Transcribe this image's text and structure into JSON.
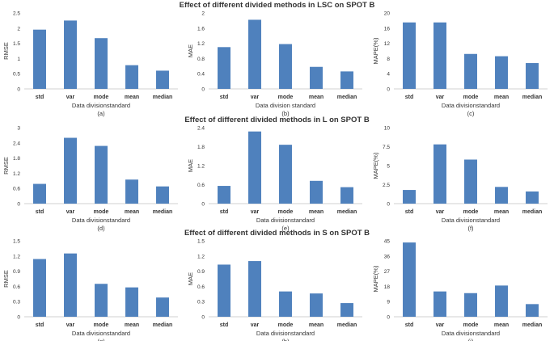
{
  "row_titles": [
    "Effect of different divided methods in LSC on SPOT B",
    "Effect of different divided methods in L on SPOT B",
    "Effect of different divided methods in S on SPOT B"
  ],
  "colors": {
    "bar": "#4f81bd",
    "axis": "#d0d0d0",
    "text": "#333333"
  },
  "chart_data": [
    {
      "id": "a",
      "type": "bar",
      "categories": [
        "std",
        "var",
        "mode",
        "mean",
        "median"
      ],
      "values": [
        1.95,
        2.25,
        1.67,
        0.78,
        0.6
      ],
      "ylabel": "RMSE",
      "xlabel": "Data divisionstandard",
      "caption": "(a)",
      "ylim": [
        0,
        2.5
      ],
      "ticks": [
        "0",
        "0.5",
        "1",
        "1.5",
        "2",
        "2.5"
      ]
    },
    {
      "id": "b",
      "type": "bar",
      "categories": [
        "std",
        "var",
        "mode",
        "mean",
        "median"
      ],
      "values": [
        1.1,
        1.82,
        1.18,
        0.58,
        0.46
      ],
      "ylabel": "MAE",
      "xlabel": "Data division standard",
      "caption": "(b)",
      "ylim": [
        0,
        2
      ],
      "ticks": [
        "0",
        "0.4",
        "0.8",
        "1.2",
        "1.6",
        "2"
      ]
    },
    {
      "id": "c",
      "type": "bar",
      "categories": [
        "std",
        "var",
        "mode",
        "mean",
        "median"
      ],
      "values": [
        17.5,
        17.5,
        9.2,
        8.6,
        6.8
      ],
      "ylabel": "MAPE(%)",
      "xlabel": "Data divisionstandard",
      "caption": "(c)",
      "ylim": [
        0,
        20
      ],
      "ticks": [
        "0",
        "4",
        "8",
        "12",
        "16",
        "20"
      ]
    },
    {
      "id": "d",
      "type": "bar",
      "categories": [
        "std",
        "var",
        "mode",
        "mean",
        "median"
      ],
      "values": [
        0.78,
        2.6,
        2.28,
        0.95,
        0.68
      ],
      "ylabel": "RMSE",
      "xlabel": "Data divisionstandard",
      "caption": "(d)",
      "ylim": [
        0,
        3
      ],
      "ticks": [
        "0",
        "0.6",
        "1.2",
        "1.8",
        "2.4",
        "3"
      ]
    },
    {
      "id": "e",
      "type": "bar",
      "categories": [
        "std",
        "var",
        "mode",
        "mean",
        "median"
      ],
      "values": [
        0.56,
        2.28,
        1.86,
        0.72,
        0.52
      ],
      "ylabel": "MAE",
      "xlabel": "Data divisionstandard",
      "caption": "(e)",
      "ylim": [
        0,
        2.4
      ],
      "ticks": [
        "0",
        "0.6",
        "1.2",
        "1.8",
        "2.4"
      ]
    },
    {
      "id": "f",
      "type": "bar",
      "categories": [
        "std",
        "var",
        "mode",
        "mean",
        "median"
      ],
      "values": [
        1.8,
        7.8,
        5.8,
        2.2,
        1.6
      ],
      "ylabel": "MAPE(%)",
      "xlabel": "Data divisionstandard",
      "caption": "(f)",
      "ylim": [
        0,
        10
      ],
      "ticks": [
        "0",
        "2.5",
        "5",
        "7.5",
        "10"
      ]
    },
    {
      "id": "g",
      "type": "bar",
      "categories": [
        "std",
        "var",
        "mode",
        "mean",
        "median"
      ],
      "values": [
        1.14,
        1.25,
        0.65,
        0.58,
        0.38
      ],
      "ylabel": "RMSE",
      "xlabel": "Data divisionstandard",
      "caption": "(g)",
      "ylim": [
        0,
        1.5
      ],
      "ticks": [
        "0",
        "0.3",
        "0.6",
        "0.9",
        "1.2",
        "1.5"
      ]
    },
    {
      "id": "h",
      "type": "bar",
      "categories": [
        "std",
        "var",
        "mode",
        "mean",
        "median"
      ],
      "values": [
        1.03,
        1.1,
        0.5,
        0.46,
        0.27
      ],
      "ylabel": "MAE",
      "xlabel": "Data divisionstandard",
      "caption": "(h)",
      "ylim": [
        0,
        1.5
      ],
      "ticks": [
        "0",
        "0.3",
        "0.6",
        "0.9",
        "1.2",
        "1.5"
      ]
    },
    {
      "id": "i",
      "type": "bar",
      "categories": [
        "std",
        "var",
        "mode",
        "mean",
        "median"
      ],
      "values": [
        44,
        15,
        14,
        18.5,
        7.5
      ],
      "ylabel": "MAPE(%)",
      "xlabel": "Data divisionstandard",
      "caption": "(i)",
      "ylim": [
        0,
        45
      ],
      "ticks": [
        "0",
        "9",
        "18",
        "27",
        "36",
        "45"
      ]
    }
  ]
}
